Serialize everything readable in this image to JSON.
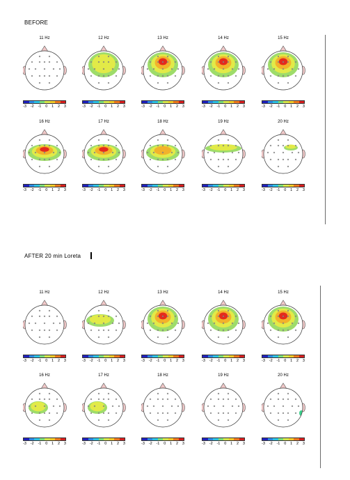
{
  "sections": [
    {
      "title": "BEFORE",
      "cursor": false
    },
    {
      "title": "AFTER 20 min Loreta",
      "cursor": true
    }
  ],
  "colorbar": {
    "colors": [
      "#2020c0",
      "#2e8ae6",
      "#2ec4e6",
      "#7ce07c",
      "#d8e84c",
      "#f2cc2a",
      "#f07a1e",
      "#d81e1e"
    ],
    "ticks": [
      "-3",
      "-2",
      "-1",
      "0",
      "1",
      "2",
      "3"
    ]
  },
  "maps": [
    {
      "freq": "11 Hz",
      "level": 0,
      "shape": "none"
    },
    {
      "freq": "12 Hz",
      "level": 1,
      "shape": "front"
    },
    {
      "freq": "13 Hz",
      "level": 3,
      "shape": "front"
    },
    {
      "freq": "14 Hz",
      "level": 3,
      "shape": "front"
    },
    {
      "freq": "15 Hz",
      "level": 3,
      "shape": "front"
    },
    {
      "freq": "16 Hz",
      "level": 3,
      "shape": "mid"
    },
    {
      "freq": "17 Hz",
      "level": 3,
      "shape": "mid"
    },
    {
      "freq": "18 Hz",
      "level": 2,
      "shape": "mid"
    },
    {
      "freq": "19 Hz",
      "level": 1,
      "shape": "band"
    },
    {
      "freq": "20 Hz",
      "level": 1,
      "shape": "small-right"
    },
    {
      "freq": "11 Hz",
      "level": 0,
      "shape": "none"
    },
    {
      "freq": "12 Hz",
      "level": 1,
      "shape": "front-left"
    },
    {
      "freq": "13 Hz",
      "level": 3,
      "shape": "front"
    },
    {
      "freq": "14 Hz",
      "level": 3,
      "shape": "front"
    },
    {
      "freq": "15 Hz",
      "level": 3,
      "shape": "front"
    },
    {
      "freq": "16 Hz",
      "level": 1,
      "shape": "mid-left"
    },
    {
      "freq": "17 Hz",
      "level": 1,
      "shape": "mid-left"
    },
    {
      "freq": "18 Hz",
      "level": 0,
      "shape": "none"
    },
    {
      "freq": "19 Hz",
      "level": 0,
      "shape": "none"
    },
    {
      "freq": "20 Hz",
      "level": 0,
      "shape": "edge-right"
    }
  ]
}
